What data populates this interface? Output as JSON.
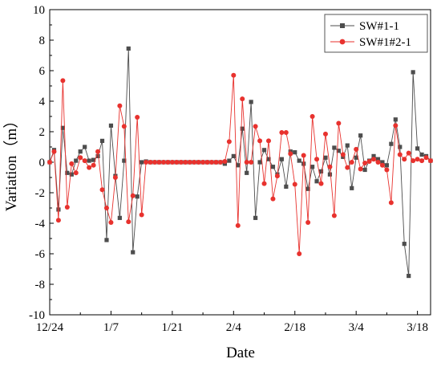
{
  "chart_data": {
    "type": "line",
    "xlabel": "Date",
    "ylabel": "Variation（m）",
    "xlim": [
      0,
      87
    ],
    "ylim": [
      -10,
      10
    ],
    "x_ticks": [
      {
        "pos": 0,
        "label": "12/24"
      },
      {
        "pos": 14,
        "label": "1/7"
      },
      {
        "pos": 28,
        "label": "1/21"
      },
      {
        "pos": 42,
        "label": "2/4"
      },
      {
        "pos": 56,
        "label": "2/18"
      },
      {
        "pos": 70,
        "label": "3/4"
      },
      {
        "pos": 84,
        "label": "3/18"
      }
    ],
    "y_ticks": [
      -10,
      -8,
      -6,
      -4,
      -2,
      0,
      2,
      4,
      6,
      8,
      10
    ],
    "grid": false,
    "legend_position": "top-right",
    "series": [
      {
        "name": "SW#1-1",
        "color": "#4d4d4d",
        "marker": "square",
        "x": [
          0,
          1,
          2,
          3,
          4,
          5,
          6,
          7,
          8,
          9,
          10,
          11,
          12,
          13,
          14,
          15,
          16,
          17,
          18,
          19,
          20,
          21,
          22,
          23,
          24,
          25,
          26,
          27,
          28,
          29,
          30,
          31,
          32,
          33,
          34,
          35,
          36,
          37,
          38,
          39,
          40,
          41,
          42,
          43,
          44,
          45,
          46,
          47,
          48,
          49,
          50,
          51,
          52,
          53,
          54,
          55,
          56,
          57,
          58,
          59,
          60,
          61,
          62,
          63,
          64,
          65,
          66,
          67,
          68,
          69,
          70,
          71,
          72,
          73,
          74,
          75,
          76,
          77,
          78,
          79,
          80,
          81,
          82,
          83,
          84,
          85,
          86,
          87
        ],
        "values": [
          0,
          0.8,
          -3.1,
          2.25,
          -0.7,
          -0.8,
          0.1,
          0.7,
          1.0,
          0.1,
          0.15,
          0.4,
          1.4,
          -5.1,
          2.4,
          -0.9,
          -3.65,
          0.1,
          7.45,
          -5.9,
          -2.25,
          0,
          0.05,
          0,
          0,
          0,
          0,
          0,
          0,
          0,
          0,
          0,
          0,
          0,
          0,
          0,
          0,
          0,
          0,
          0,
          -0.1,
          0.1,
          0.4,
          -0.2,
          2.2,
          -0.7,
          3.95,
          -3.65,
          0,
          0.8,
          0.2,
          -0.3,
          -0.8,
          0.2,
          -1.6,
          0.7,
          0.65,
          0.1,
          -0.1,
          -1.75,
          -0.3,
          -1.25,
          -0.6,
          0.3,
          -0.8,
          0.95,
          0.75,
          0.35,
          1.1,
          -1.7,
          0.3,
          1.75,
          -0.5,
          0.1,
          0.4,
          0.2,
          0,
          -0.2,
          1.2,
          2.8,
          1.0,
          -5.35,
          -7.45,
          5.9,
          0.9,
          0.5,
          0.4,
          0.1
        ]
      },
      {
        "name": "SW#1#2-1",
        "color": "#e8322e",
        "marker": "circle",
        "x": [
          0,
          1,
          2,
          3,
          4,
          5,
          6,
          7,
          8,
          9,
          10,
          11,
          12,
          13,
          14,
          15,
          16,
          17,
          18,
          19,
          20,
          21,
          22,
          23,
          24,
          25,
          26,
          27,
          28,
          29,
          30,
          31,
          32,
          33,
          34,
          35,
          36,
          37,
          38,
          39,
          40,
          41,
          42,
          43,
          44,
          45,
          46,
          47,
          48,
          49,
          50,
          51,
          52,
          53,
          54,
          55,
          56,
          57,
          58,
          59,
          60,
          61,
          62,
          63,
          64,
          65,
          66,
          67,
          68,
          69,
          70,
          71,
          72,
          73,
          74,
          75,
          76,
          77,
          78,
          79,
          80,
          81,
          82,
          83,
          84,
          85,
          86,
          87
        ],
        "values": [
          0,
          0.7,
          -3.8,
          5.35,
          -2.95,
          -0.1,
          -0.7,
          0.3,
          0.1,
          -0.35,
          -0.2,
          0.7,
          -1.8,
          -3.0,
          -3.95,
          -1.0,
          3.7,
          2.35,
          -3.9,
          -2.2,
          2.95,
          -3.45,
          0,
          0,
          0,
          0,
          0,
          0,
          0,
          0,
          0,
          0,
          0,
          0,
          0,
          0,
          0,
          0,
          0,
          0,
          0.05,
          1.35,
          5.7,
          -4.15,
          4.15,
          0,
          0,
          2.35,
          1.4,
          -1.4,
          1.4,
          -2.4,
          -0.9,
          1.95,
          1.95,
          0.55,
          -1.45,
          -6.0,
          0.45,
          -3.95,
          3.0,
          0.2,
          -1.4,
          1.85,
          -0.3,
          -3.5,
          2.55,
          0.5,
          -0.35,
          0,
          0.85,
          -0.45,
          -0.05,
          0.05,
          0.2,
          0,
          -0.2,
          -0.5,
          -2.65,
          2.4,
          0.5,
          0.2,
          0.6,
          0.1,
          0.2,
          0.1,
          0.3,
          0.1
        ]
      }
    ]
  }
}
